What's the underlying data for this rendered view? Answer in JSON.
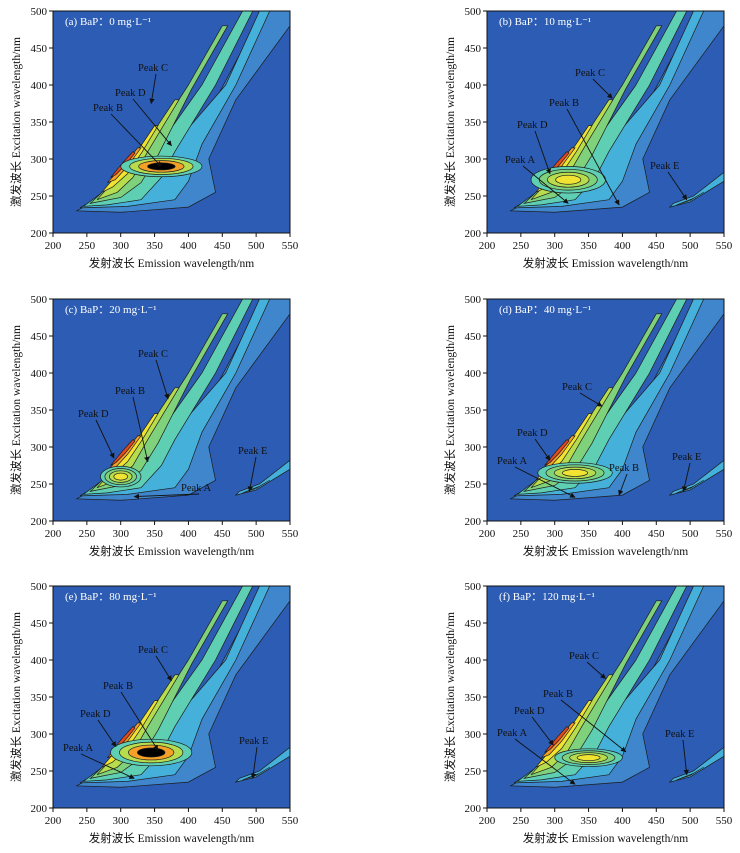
{
  "chart_data": [
    {
      "type": "heatmap",
      "title": "(a) BaP：0 mg·L⁻¹",
      "xlabel": "发射波长 Emission wavelength/nm",
      "ylabel": "激发波长 Excitation wavelength/nm",
      "xlim": [
        200,
        550
      ],
      "ylim": [
        200,
        500
      ],
      "xticks": [
        "200",
        "250",
        "300",
        "350",
        "400",
        "450",
        "500",
        "550"
      ],
      "yticks": [
        "200",
        "250",
        "300",
        "350",
        "400",
        "450",
        "500"
      ],
      "peaks": [
        {
          "label": "Peak B",
          "x": 360,
          "y": 290
        },
        {
          "label": "Peak C",
          "x": 345,
          "y": 375
        },
        {
          "label": "Peak D",
          "x": 375,
          "y": 318
        }
      ]
    },
    {
      "type": "heatmap",
      "title": "(b) BaP：10 mg·L⁻¹",
      "xlabel": "发射波长 Emission wavelength/nm",
      "ylabel": "激发波长 Excitation wavelength/nm",
      "xlim": [
        200,
        550
      ],
      "ylim": [
        200,
        500
      ],
      "xticks": [
        "200",
        "250",
        "300",
        "350",
        "400",
        "450",
        "500",
        "550"
      ],
      "yticks": [
        "200",
        "250",
        "300",
        "350",
        "400",
        "450",
        "500"
      ],
      "peaks": [
        {
          "label": "Peak A",
          "x": 320,
          "y": 240
        },
        {
          "label": "Peak B",
          "x": 395,
          "y": 238
        },
        {
          "label": "Peak C",
          "x": 385,
          "y": 382
        },
        {
          "label": "Peak D",
          "x": 293,
          "y": 280
        },
        {
          "label": "Peak E",
          "x": 495,
          "y": 245
        }
      ]
    },
    {
      "type": "heatmap",
      "title": "(c) BaP：20 mg·L⁻¹",
      "xlabel": "发射波长 Emission wavelength/nm",
      "ylabel": "激发波长 Excitation wavelength/nm",
      "xlim": [
        200,
        550
      ],
      "ylim": [
        200,
        500
      ],
      "xticks": [
        "200",
        "250",
        "300",
        "350",
        "400",
        "450",
        "500",
        "550"
      ],
      "yticks": [
        "200",
        "250",
        "300",
        "350",
        "400",
        "450",
        "500"
      ],
      "peaks": [
        {
          "label": "Peak A",
          "x": 320,
          "y": 233
        },
        {
          "label": "Peak B",
          "x": 340,
          "y": 280
        },
        {
          "label": "Peak C",
          "x": 370,
          "y": 365
        },
        {
          "label": "Peak D",
          "x": 290,
          "y": 285
        },
        {
          "label": "Peak E",
          "x": 490,
          "y": 240
        }
      ]
    },
    {
      "type": "heatmap",
      "title": "(d) BaP：40 mg·L⁻¹",
      "xlabel": "发射波长 Emission wavelength/nm",
      "ylabel": "激发波长 Excitation wavelength/nm",
      "xlim": [
        200,
        550
      ],
      "ylim": [
        200,
        500
      ],
      "xticks": [
        "200",
        "250",
        "300",
        "350",
        "400",
        "450",
        "500",
        "550"
      ],
      "yticks": [
        "200",
        "250",
        "300",
        "350",
        "400",
        "450",
        "500"
      ],
      "peaks": [
        {
          "label": "Peak A",
          "x": 330,
          "y": 232
        },
        {
          "label": "Peak B",
          "x": 395,
          "y": 235
        },
        {
          "label": "Peak C",
          "x": 370,
          "y": 355
        },
        {
          "label": "Peak D",
          "x": 293,
          "y": 282
        },
        {
          "label": "Peak E",
          "x": 490,
          "y": 240
        }
      ]
    },
    {
      "type": "heatmap",
      "title": "(e) BaP：80 mg·L⁻¹",
      "xlabel": "发射波长 Emission wavelength/nm",
      "ylabel": "激发波长 Excitation wavelength/nm",
      "xlim": [
        200,
        550
      ],
      "ylim": [
        200,
        500
      ],
      "xticks": [
        "200",
        "250",
        "300",
        "350",
        "400",
        "450",
        "500",
        "550"
      ],
      "yticks": [
        "200",
        "250",
        "300",
        "350",
        "400",
        "450",
        "500"
      ],
      "peaks": [
        {
          "label": "Peak A",
          "x": 320,
          "y": 240
        },
        {
          "label": "Peak B",
          "x": 355,
          "y": 278
        },
        {
          "label": "Peak C",
          "x": 375,
          "y": 372
        },
        {
          "label": "Peak D",
          "x": 293,
          "y": 283
        },
        {
          "label": "Peak E",
          "x": 495,
          "y": 240
        }
      ]
    },
    {
      "type": "heatmap",
      "title": "(f) BaP：120 mg·L⁻¹",
      "xlabel": "发射波长 Emission wavelength/nm",
      "ylabel": "激发波长 Excitation wavelength/nm",
      "xlim": [
        200,
        550
      ],
      "ylim": [
        200,
        500
      ],
      "xticks": [
        "200",
        "250",
        "300",
        "350",
        "400",
        "450",
        "500",
        "550"
      ],
      "yticks": [
        "200",
        "250",
        "300",
        "350",
        "400",
        "450",
        "500"
      ],
      "peaks": [
        {
          "label": "Peak A",
          "x": 330,
          "y": 232
        },
        {
          "label": "Peak B",
          "x": 405,
          "y": 276
        },
        {
          "label": "Peak C",
          "x": 375,
          "y": 375
        },
        {
          "label": "Peak D",
          "x": 298,
          "y": 285
        },
        {
          "label": "Peak E",
          "x": 495,
          "y": 245
        }
      ]
    }
  ],
  "colors": {
    "background": "#2c5cb3",
    "levels": [
      "#2c5cb3",
      "#3f86cd",
      "#45b1da",
      "#5fcfb4",
      "#7fd17c",
      "#b7dc4e",
      "#f0e331",
      "#f5a127",
      "#e24a1f"
    ],
    "contour": "#1c1c1c",
    "annotation": "#111111"
  }
}
